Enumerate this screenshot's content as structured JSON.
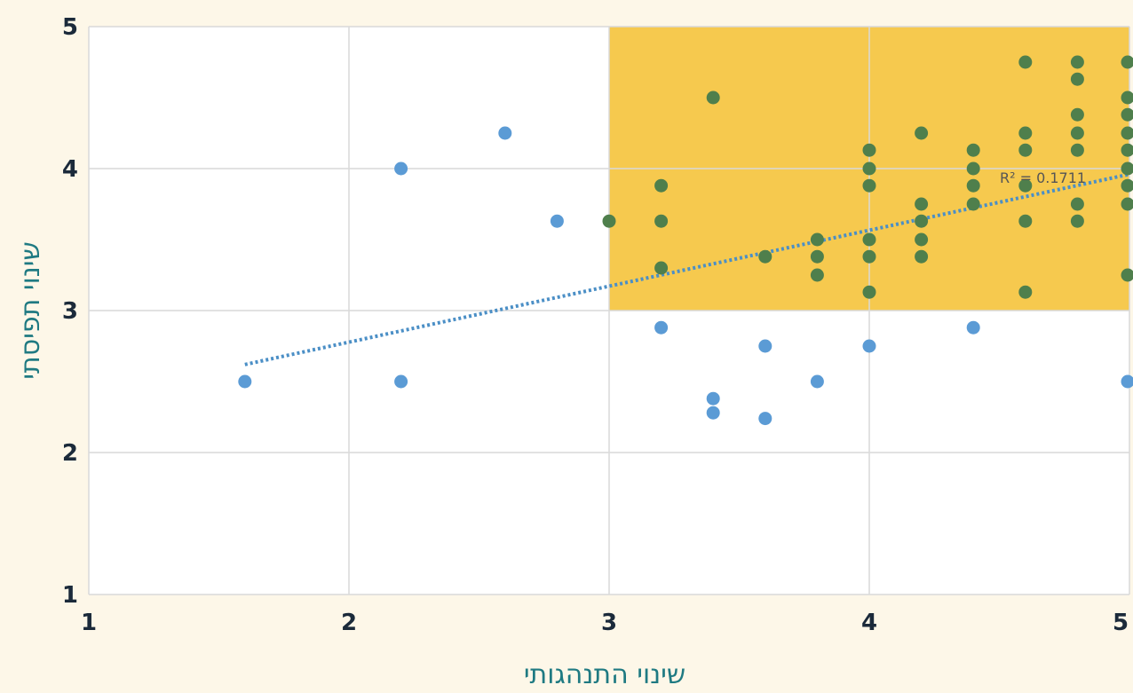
{
  "chart_data": {
    "type": "scatter",
    "xlabel": "שינוי התנהגותי",
    "ylabel": "שינוי תפיסתי",
    "xlim": [
      1,
      5
    ],
    "ylim": [
      1,
      5
    ],
    "x_ticks": [
      "1",
      "2",
      "3",
      "4",
      "5"
    ],
    "y_ticks": [
      "1",
      "2",
      "3",
      "4",
      "5"
    ],
    "grid": true,
    "highlight_region": {
      "x": [
        3,
        5
      ],
      "y": [
        3,
        5
      ],
      "color": "#f6c94e"
    },
    "trendline": {
      "x": [
        1.6,
        5
      ],
      "y": [
        2.62,
        3.96
      ],
      "style": "dotted",
      "color": "#4b8fc6"
    },
    "r_squared_label": "R² = 0.1711",
    "colors": {
      "outside": "#5b9bd5",
      "inside": "#4f7f4c"
    },
    "points": [
      {
        "x": 1.6,
        "y": 2.5
      },
      {
        "x": 2.2,
        "y": 4.0
      },
      {
        "x": 2.2,
        "y": 2.5
      },
      {
        "x": 2.6,
        "y": 4.25
      },
      {
        "x": 2.8,
        "y": 3.63
      },
      {
        "x": 3.0,
        "y": 3.63
      },
      {
        "x": 3.2,
        "y": 3.88
      },
      {
        "x": 3.2,
        "y": 3.63
      },
      {
        "x": 3.2,
        "y": 3.3
      },
      {
        "x": 3.2,
        "y": 2.88
      },
      {
        "x": 3.4,
        "y": 4.5
      },
      {
        "x": 3.4,
        "y": 2.38
      },
      {
        "x": 3.4,
        "y": 2.28
      },
      {
        "x": 3.6,
        "y": 3.38
      },
      {
        "x": 3.6,
        "y": 2.75
      },
      {
        "x": 3.6,
        "y": 2.24
      },
      {
        "x": 3.8,
        "y": 3.5
      },
      {
        "x": 3.8,
        "y": 3.38
      },
      {
        "x": 3.8,
        "y": 3.25
      },
      {
        "x": 3.8,
        "y": 2.5
      },
      {
        "x": 4.0,
        "y": 4.13
      },
      {
        "x": 4.0,
        "y": 4.0
      },
      {
        "x": 4.0,
        "y": 3.88
      },
      {
        "x": 4.0,
        "y": 3.5
      },
      {
        "x": 4.0,
        "y": 3.38
      },
      {
        "x": 4.0,
        "y": 3.13
      },
      {
        "x": 4.0,
        "y": 2.75
      },
      {
        "x": 4.2,
        "y": 4.25
      },
      {
        "x": 4.2,
        "y": 3.75
      },
      {
        "x": 4.2,
        "y": 3.63
      },
      {
        "x": 4.2,
        "y": 3.5
      },
      {
        "x": 4.2,
        "y": 3.38
      },
      {
        "x": 4.4,
        "y": 4.13
      },
      {
        "x": 4.4,
        "y": 4.0
      },
      {
        "x": 4.4,
        "y": 3.88
      },
      {
        "x": 4.4,
        "y": 3.75
      },
      {
        "x": 4.4,
        "y": 2.88
      },
      {
        "x": 4.6,
        "y": 4.75
      },
      {
        "x": 4.6,
        "y": 4.25
      },
      {
        "x": 4.6,
        "y": 4.13
      },
      {
        "x": 4.6,
        "y": 3.88
      },
      {
        "x": 4.6,
        "y": 3.63
      },
      {
        "x": 4.6,
        "y": 3.13
      },
      {
        "x": 4.8,
        "y": 4.75
      },
      {
        "x": 4.8,
        "y": 4.63
      },
      {
        "x": 4.8,
        "y": 4.38
      },
      {
        "x": 4.8,
        "y": 4.25
      },
      {
        "x": 4.8,
        "y": 4.13
      },
      {
        "x": 4.8,
        "y": 3.75
      },
      {
        "x": 4.8,
        "y": 3.63
      },
      {
        "x": 5.0,
        "y": 4.75
      },
      {
        "x": 5.0,
        "y": 4.5
      },
      {
        "x": 5.0,
        "y": 4.38
      },
      {
        "x": 5.0,
        "y": 4.25
      },
      {
        "x": 5.0,
        "y": 4.13
      },
      {
        "x": 5.0,
        "y": 4.0
      },
      {
        "x": 5.0,
        "y": 3.88
      },
      {
        "x": 5.0,
        "y": 3.75
      },
      {
        "x": 5.0,
        "y": 3.25
      },
      {
        "x": 5.0,
        "y": 2.5
      }
    ]
  }
}
